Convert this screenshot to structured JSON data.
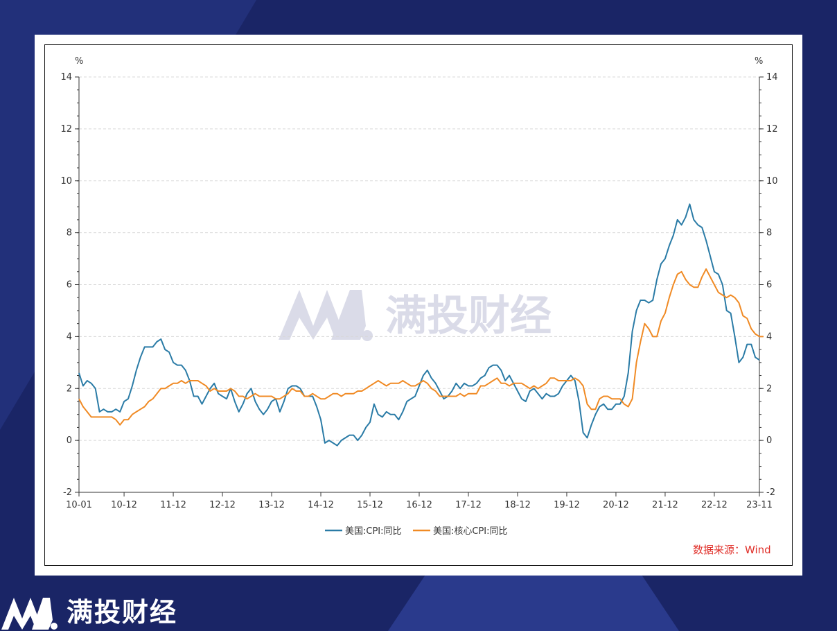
{
  "brand": {
    "name": "满投财经",
    "watermark_text": "满投财经"
  },
  "source_note": "数据来源：Wind",
  "chart_data": {
    "type": "line",
    "title": "",
    "ylabel_left": "%",
    "ylabel_right": "%",
    "ylim": [
      -2,
      14
    ],
    "yticks": [
      -2,
      0,
      2,
      4,
      6,
      8,
      10,
      12,
      14
    ],
    "x_start": "2010-01",
    "x_end": "2023-11",
    "x_ticks": [
      "10-01",
      "10-12",
      "11-12",
      "12-12",
      "13-12",
      "14-12",
      "15-12",
      "16-12",
      "17-12",
      "18-12",
      "19-12",
      "20-12",
      "21-12",
      "22-12",
      "23-11"
    ],
    "legend_position": "bottom-center",
    "grid": "horizontal dashed",
    "series": [
      {
        "name": "美国:CPI:同比",
        "color": "#2a7ba6",
        "values": [
          2.6,
          2.1,
          2.3,
          2.2,
          2.0,
          1.1,
          1.2,
          1.1,
          1.1,
          1.2,
          1.1,
          1.5,
          1.6,
          2.1,
          2.7,
          3.2,
          3.6,
          3.6,
          3.6,
          3.8,
          3.9,
          3.5,
          3.4,
          3.0,
          2.9,
          2.9,
          2.7,
          2.3,
          1.7,
          1.7,
          1.4,
          1.7,
          2.0,
          2.2,
          1.8,
          1.7,
          1.6,
          2.0,
          1.5,
          1.1,
          1.4,
          1.8,
          2.0,
          1.5,
          1.2,
          1.0,
          1.2,
          1.5,
          1.6,
          1.1,
          1.5,
          2.0,
          2.1,
          2.1,
          2.0,
          1.7,
          1.7,
          1.7,
          1.3,
          0.8,
          -0.1,
          0.0,
          -0.1,
          -0.2,
          0.0,
          0.1,
          0.2,
          0.2,
          0.0,
          0.2,
          0.5,
          0.7,
          1.4,
          1.0,
          0.9,
          1.1,
          1.0,
          1.0,
          0.8,
          1.1,
          1.5,
          1.6,
          1.7,
          2.1,
          2.5,
          2.7,
          2.4,
          2.2,
          1.9,
          1.6,
          1.7,
          1.9,
          2.2,
          2.0,
          2.2,
          2.1,
          2.1,
          2.2,
          2.4,
          2.5,
          2.8,
          2.9,
          2.9,
          2.7,
          2.3,
          2.5,
          2.2,
          1.9,
          1.6,
          1.5,
          1.9,
          2.0,
          1.8,
          1.6,
          1.8,
          1.7,
          1.7,
          1.8,
          2.1,
          2.3,
          2.5,
          2.3,
          1.5,
          0.3,
          0.1,
          0.6,
          1.0,
          1.3,
          1.4,
          1.2,
          1.2,
          1.4,
          1.4,
          1.7,
          2.6,
          4.2,
          5.0,
          5.4,
          5.4,
          5.3,
          5.4,
          6.2,
          6.8,
          7.0,
          7.5,
          7.9,
          8.5,
          8.3,
          8.6,
          9.1,
          8.5,
          8.3,
          8.2,
          7.7,
          7.1,
          6.5,
          6.4,
          6.0,
          5.0,
          4.9,
          4.0,
          3.0,
          3.2,
          3.7,
          3.7,
          3.2,
          3.1
        ]
      },
      {
        "name": "美国:核心CPI:同比",
        "color": "#f08a24",
        "values": [
          1.6,
          1.3,
          1.1,
          0.9,
          0.9,
          0.9,
          0.9,
          0.9,
          0.9,
          0.8,
          0.6,
          0.8,
          0.8,
          1.0,
          1.1,
          1.2,
          1.3,
          1.5,
          1.6,
          1.8,
          2.0,
          2.0,
          2.1,
          2.2,
          2.2,
          2.3,
          2.2,
          2.3,
          2.3,
          2.3,
          2.2,
          2.1,
          1.9,
          2.0,
          1.9,
          1.9,
          1.9,
          2.0,
          1.9,
          1.7,
          1.7,
          1.6,
          1.7,
          1.8,
          1.7,
          1.7,
          1.7,
          1.7,
          1.6,
          1.6,
          1.7,
          1.8,
          2.0,
          1.9,
          1.9,
          1.7,
          1.7,
          1.8,
          1.7,
          1.6,
          1.6,
          1.7,
          1.8,
          1.8,
          1.7,
          1.8,
          1.8,
          1.8,
          1.9,
          1.9,
          2.0,
          2.1,
          2.2,
          2.3,
          2.2,
          2.1,
          2.2,
          2.2,
          2.2,
          2.3,
          2.2,
          2.1,
          2.1,
          2.2,
          2.3,
          2.2,
          2.0,
          1.9,
          1.7,
          1.7,
          1.7,
          1.7,
          1.7,
          1.8,
          1.7,
          1.8,
          1.8,
          1.8,
          2.1,
          2.1,
          2.2,
          2.3,
          2.4,
          2.2,
          2.2,
          2.1,
          2.2,
          2.2,
          2.2,
          2.1,
          2.0,
          2.1,
          2.0,
          2.1,
          2.2,
          2.4,
          2.4,
          2.3,
          2.3,
          2.3,
          2.3,
          2.4,
          2.3,
          2.1,
          1.4,
          1.2,
          1.2,
          1.6,
          1.7,
          1.7,
          1.6,
          1.6,
          1.6,
          1.4,
          1.3,
          1.6,
          3.0,
          3.8,
          4.5,
          4.3,
          4.0,
          4.0,
          4.6,
          4.9,
          5.5,
          6.0,
          6.4,
          6.5,
          6.2,
          6.0,
          5.9,
          5.9,
          6.3,
          6.6,
          6.3,
          6.0,
          5.7,
          5.6,
          5.5,
          5.6,
          5.5,
          5.3,
          4.8,
          4.7,
          4.3,
          4.1,
          4.0,
          4.0
        ]
      }
    ]
  }
}
